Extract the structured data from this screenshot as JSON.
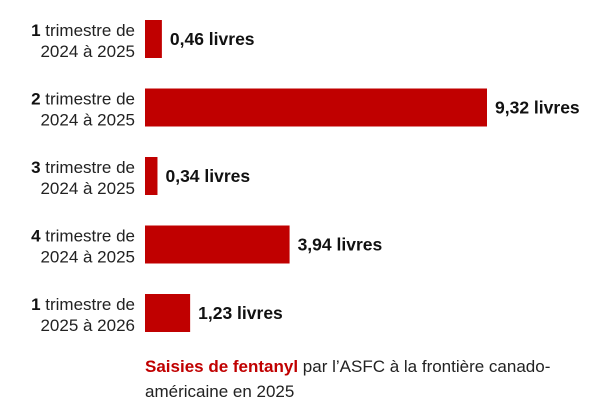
{
  "chart_data": {
    "type": "bar",
    "orientation": "horizontal",
    "categories": [
      {
        "num": "1",
        "line1": "trimestre de",
        "line2": "2024 à 2025"
      },
      {
        "num": "2",
        "line1": "trimestre de",
        "line2": "2024 à 2025"
      },
      {
        "num": "3",
        "line1": "trimestre de",
        "line2": "2024 à 2025"
      },
      {
        "num": "4",
        "line1": "trimestre de",
        "line2": "2024 à 2025"
      },
      {
        "num": "1",
        "line1": "trimestre de",
        "line2": "2025 à 2026"
      }
    ],
    "values": [
      0.46,
      9.32,
      0.34,
      3.94,
      1.23
    ],
    "value_labels": [
      "0,46 livres",
      "9,32 livres",
      "0,34 livres",
      "3,94 livres",
      "1,23 livres"
    ],
    "bar_color": "#c00000",
    "grid": false,
    "legend": "none"
  },
  "caption": {
    "highlight": "Saisies de fentanyl",
    "rest": " par l’ASFC à la frontière canado-américaine en 2025",
    "highlight_color": "#c00000"
  }
}
